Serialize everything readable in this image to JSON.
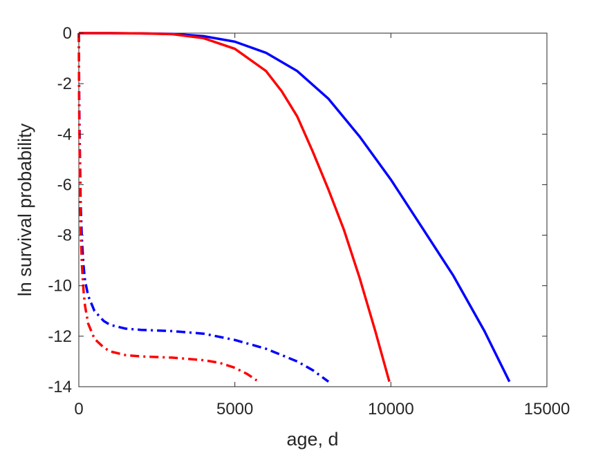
{
  "chart_data": {
    "type": "line",
    "title": "",
    "xlabel": "age, d",
    "ylabel": "ln survival probability",
    "xlim": [
      0,
      15000
    ],
    "ylim": [
      -14,
      0
    ],
    "xticks": [
      0,
      5000,
      10000,
      15000
    ],
    "xtick_labels": [
      "0",
      "5000",
      "10000",
      "15000"
    ],
    "yticks": [
      -14,
      -12,
      -10,
      -8,
      -6,
      -4,
      -2,
      0
    ],
    "ytick_labels": [
      "-14",
      "-12",
      "-10",
      "-8",
      "-6",
      "-4",
      "-2",
      "0"
    ],
    "grid": false,
    "legend": "none",
    "series": [
      {
        "color": "#0000ff",
        "style": "solid",
        "x": [
          0,
          1000,
          2000,
          3000,
          4000,
          5000,
          6000,
          7000,
          8000,
          9000,
          10000,
          11000,
          12000,
          13000,
          13800
        ],
        "y": [
          0,
          0,
          -0.01,
          -0.03,
          -0.12,
          -0.34,
          -0.78,
          -1.5,
          -2.6,
          -4.1,
          -5.8,
          -7.7,
          -9.6,
          -11.8,
          -13.8
        ]
      },
      {
        "color": "#ff0000",
        "style": "solid",
        "x": [
          0,
          1000,
          2000,
          3000,
          4000,
          5000,
          6000,
          6500,
          7000,
          7500,
          8000,
          8500,
          9000,
          9500,
          9950
        ],
        "y": [
          0,
          0,
          -0.01,
          -0.04,
          -0.2,
          -0.62,
          -1.5,
          -2.3,
          -3.3,
          -4.7,
          -6.2,
          -7.8,
          -9.7,
          -11.8,
          -13.8
        ]
      },
      {
        "color": "#0000ff",
        "style": "dashdot",
        "x": [
          0,
          10,
          30,
          60,
          100,
          150,
          200,
          300,
          500,
          800,
          1000,
          1500,
          2000,
          3000,
          4000,
          5000,
          6000,
          7000,
          7500,
          8000
        ],
        "y": [
          0,
          -2.5,
          -4.5,
          -6.8,
          -8.2,
          -9.2,
          -9.8,
          -10.4,
          -11.0,
          -11.4,
          -11.55,
          -11.7,
          -11.75,
          -11.8,
          -11.9,
          -12.15,
          -12.5,
          -13.0,
          -13.35,
          -13.8
        ]
      },
      {
        "color": "#ff0000",
        "style": "dashdot",
        "x": [
          0,
          10,
          30,
          60,
          100,
          150,
          200,
          300,
          500,
          800,
          1000,
          1500,
          2000,
          3000,
          4000,
          4500,
          5000,
          5400,
          5700
        ],
        "y": [
          0,
          -3,
          -5.5,
          -7.8,
          -9.2,
          -10.2,
          -10.8,
          -11.5,
          -12.1,
          -12.45,
          -12.6,
          -12.75,
          -12.8,
          -12.85,
          -12.95,
          -13.05,
          -13.25,
          -13.5,
          -13.75
        ]
      }
    ]
  }
}
